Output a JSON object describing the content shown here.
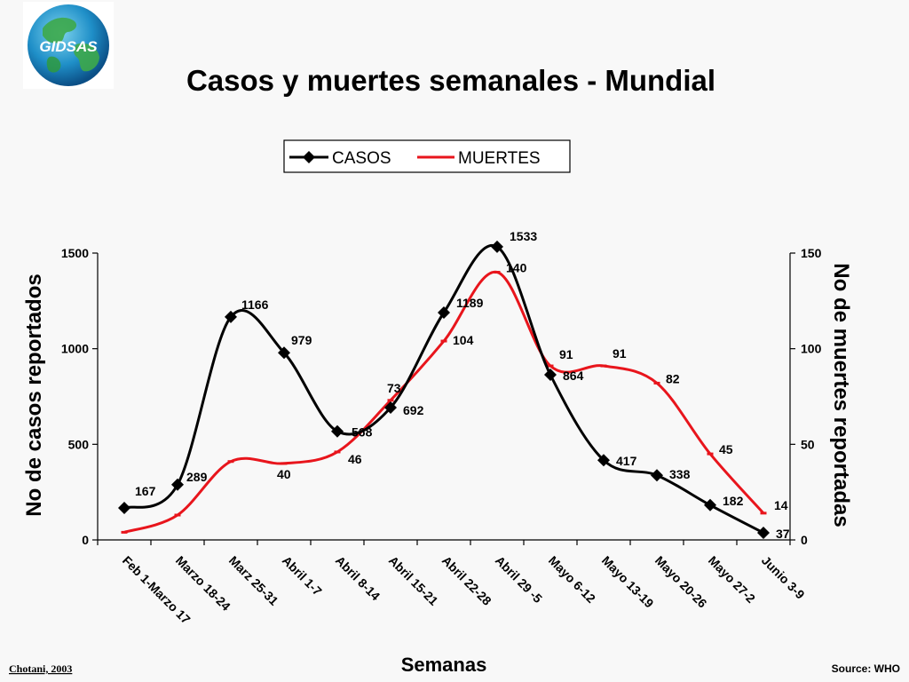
{
  "logo": {
    "text": "GIDSAS"
  },
  "credits": {
    "left": "Chotani, 2003",
    "right": "Source: WHO"
  },
  "chart_data": {
    "type": "line",
    "title": "Casos y muertes semanales - Mundial",
    "xlabel": "Semanas",
    "ylabel": "No de casos reportados",
    "y2label": "No de muertes reportadas",
    "categories": [
      "Feb 1-Marzo 17",
      "Marzo 18-24",
      "Marz 25-31",
      "Abril 1-7",
      "Abril 8-14",
      "Abril 15-21",
      "Abril 22-28",
      "Abril 29 -5",
      "Mayo 6-12",
      "Mayo 13-19",
      "Mayo 20-26",
      "Mayo 27-2",
      "Junio 3-9"
    ],
    "ylim": [
      0,
      1500
    ],
    "yticks": [
      0,
      500,
      1000,
      1500
    ],
    "y2lim": [
      0,
      150
    ],
    "y2ticks": [
      0,
      50,
      100,
      150
    ],
    "legend_position": "top-center",
    "grid": false,
    "series": [
      {
        "name": "CASOS",
        "axis": "left",
        "color": "#000000",
        "marker": "diamond",
        "values": [
          167,
          289,
          1166,
          979,
          568,
          692,
          1189,
          1533,
          864,
          417,
          338,
          182,
          37
        ],
        "labels": [
          "167",
          "289",
          "1166",
          "979",
          "568",
          "692",
          "1189",
          "1533",
          "864",
          "417",
          "338",
          "182",
          "37"
        ]
      },
      {
        "name": "MUERTES",
        "axis": "right",
        "color": "#e8151c",
        "marker": "dash",
        "values": [
          4,
          13,
          41,
          40,
          46,
          73,
          104,
          140,
          91,
          91,
          82,
          45,
          14
        ],
        "labels": [
          "",
          "",
          "",
          "40",
          "46",
          "73",
          "104",
          "140",
          "91",
          "91",
          "82",
          "45",
          "14"
        ]
      }
    ]
  }
}
